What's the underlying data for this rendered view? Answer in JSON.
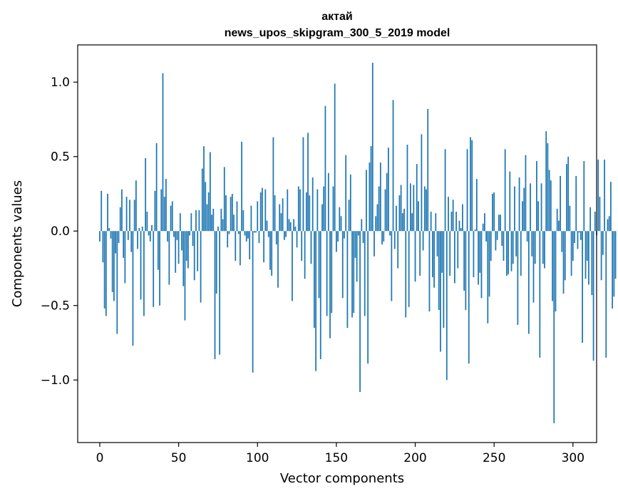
{
  "chart_data": {
    "type": "bar",
    "title_lines": [
      "актай",
      "news_upos_skipgram_300_5_2019 model"
    ],
    "xlabel": "Vector components",
    "ylabel": "Components values",
    "xlim": [
      -14,
      315
    ],
    "ylim": [
      -1.42,
      1.25
    ],
    "xticks": [
      0,
      50,
      100,
      150,
      200,
      250,
      300
    ],
    "xtick_labels": [
      "0",
      "50",
      "100",
      "150",
      "200",
      "250",
      "300"
    ],
    "yticks": [
      -1.0,
      -0.5,
      0.0,
      0.5,
      1.0
    ],
    "ytick_labels": [
      "−1.0",
      "−0.5",
      "0.0",
      "0.5",
      "1.0"
    ],
    "bar_color": "#1f77b4",
    "grid": false,
    "x_start": 0,
    "values": [
      -0.07,
      0.27,
      -0.21,
      -0.52,
      -0.57,
      0.25,
      0.02,
      -0.05,
      -0.41,
      -0.47,
      -0.15,
      -0.69,
      -0.08,
      0.16,
      0.28,
      -0.18,
      -0.35,
      0.23,
      -0.06,
      0.21,
      -0.14,
      -0.77,
      0.21,
      0.34,
      -0.12,
      0.02,
      -0.46,
      0.03,
      -0.57,
      0.49,
      0.13,
      -0.03,
      -0.07,
      0.04,
      -0.51,
      0.27,
      0.59,
      -0.26,
      -0.5,
      0.28,
      1.06,
      0.23,
      0.35,
      -0.07,
      -0.36,
      0.17,
      0.2,
      -0.04,
      -0.28,
      -0.06,
      -0.22,
      0.12,
      -0.13,
      -0.37,
      -0.6,
      -0.2,
      -0.25,
      -0.03,
      0.12,
      -0.1,
      -0.33,
      0.14,
      -0.27,
      0.14,
      -0.48,
      0.42,
      0.57,
      0.33,
      0.18,
      0.26,
      0.53,
      0.11,
      0.15,
      -0.86,
      -0.42,
      0.03,
      -0.83,
      0.15,
      0.08,
      0.43,
      0.24,
      -0.11,
      -0.02,
      0.23,
      0.25,
      0.11,
      -0.2,
      0.2,
      -0.02,
      -0.23,
      0.6,
      0.14,
      -0.03,
      -0.07,
      -0.05,
      -0.19,
      0.17,
      -0.95,
      -0.01,
      -0.01,
      0.2,
      -0.08,
      0.26,
      0.29,
      -0.21,
      0.28,
      0.07,
      -0.04,
      -0.26,
      -0.3,
      0.63,
      0.24,
      -0.09,
      -0.38,
      0.18,
      0.12,
      0.22,
      -0.06,
      -0.04,
      0.28,
      0.08,
      0.06,
      -0.47,
      0.08,
      0.03,
      -0.11,
      0.3,
      0.28,
      -0.2,
      0.63,
      -0.32,
      0.26,
      0.66,
      0.24,
      -0.22,
      0.36,
      -0.65,
      -0.94,
      0.28,
      -0.45,
      -0.86,
      0.18,
      0.3,
      0.84,
      -0.57,
      0.39,
      -0.72,
      -0.55,
      0.3,
      0.99,
      -0.14,
      -0.07,
      0.16,
      0.1,
      -0.45,
      -0.05,
      0.51,
      -0.65,
      0.21,
      0.38,
      -0.58,
      -0.55,
      -0.18,
      -0.34,
      -0.03,
      -1.08,
      0.08,
      -0.08,
      -0.57,
      0.41,
      -0.89,
      0.46,
      0.57,
      1.13,
      -0.17,
      0.1,
      0.18,
      0.3,
      0.46,
      -0.09,
      -0.07,
      0.28,
      0.39,
      0.56,
      -0.03,
      -0.47,
      0.88,
      -0.12,
      0.17,
      -0.25,
      0.24,
      0.31,
      0.12,
      0.15,
      -0.58,
      0.58,
      -0.51,
      0.32,
      0.12,
      0.31,
      -0.34,
      0.45,
      0.2,
      -0.3,
      0.65,
      -0.13,
      0.3,
      0.28,
      0.82,
      -0.54,
      0.13,
      -0.31,
      -0.38,
      0.12,
      -0.17,
      -0.53,
      -0.81,
      -0.28,
      -0.65,
      0.55,
      -1.0,
      0.23,
      -0.3,
      0.13,
      0.21,
      -0.35,
      0.13,
      -0.25,
      0.07,
      0.02,
      0.18,
      -0.4,
      -0.53,
      0.55,
      -0.89,
      0.63,
      0.61,
      -0.31,
      0.01,
      0.35,
      -0.36,
      -0.28,
      -0.45,
      0.05,
      0.12,
      -0.07,
      -0.62,
      -0.44,
      -0.2,
      0.25,
      0.26,
      -0.13,
      -0.06,
      0.11,
      0.11,
      -0.1,
      -0.2,
      0.55,
      -0.3,
      -0.29,
      0.4,
      -0.27,
      -0.22,
      0.3,
      -0.17,
      -0.63,
      0.36,
      -0.3,
      0.2,
      0.29,
      0.51,
      -0.07,
      -0.69,
      0.32,
      -0.17,
      -0.48,
      -0.22,
      0.47,
      0.2,
      -0.85,
      0.32,
      -0.22,
      -0.25,
      0.67,
      0.59,
      0.41,
      0.34,
      -0.47,
      -1.29,
      -0.54,
      0.15,
      0.07,
      0.37,
      -0.14,
      -0.42,
      -0.33,
      0.45,
      0.5,
      0.17,
      -0.3,
      -0.2,
      -0.08,
      0.37,
      -0.12,
      -0.01,
      -0.06,
      -0.75,
      0.47,
      -0.32,
      -0.2,
      -0.36,
      0.16,
      -0.43,
      -0.87,
      0.13,
      -0.03,
      0.48,
      0.23,
      -0.33,
      -0.16,
      0.48,
      -0.85,
      0.08,
      0.1,
      0.33,
      -0.52,
      -0.44,
      -0.32
    ]
  }
}
